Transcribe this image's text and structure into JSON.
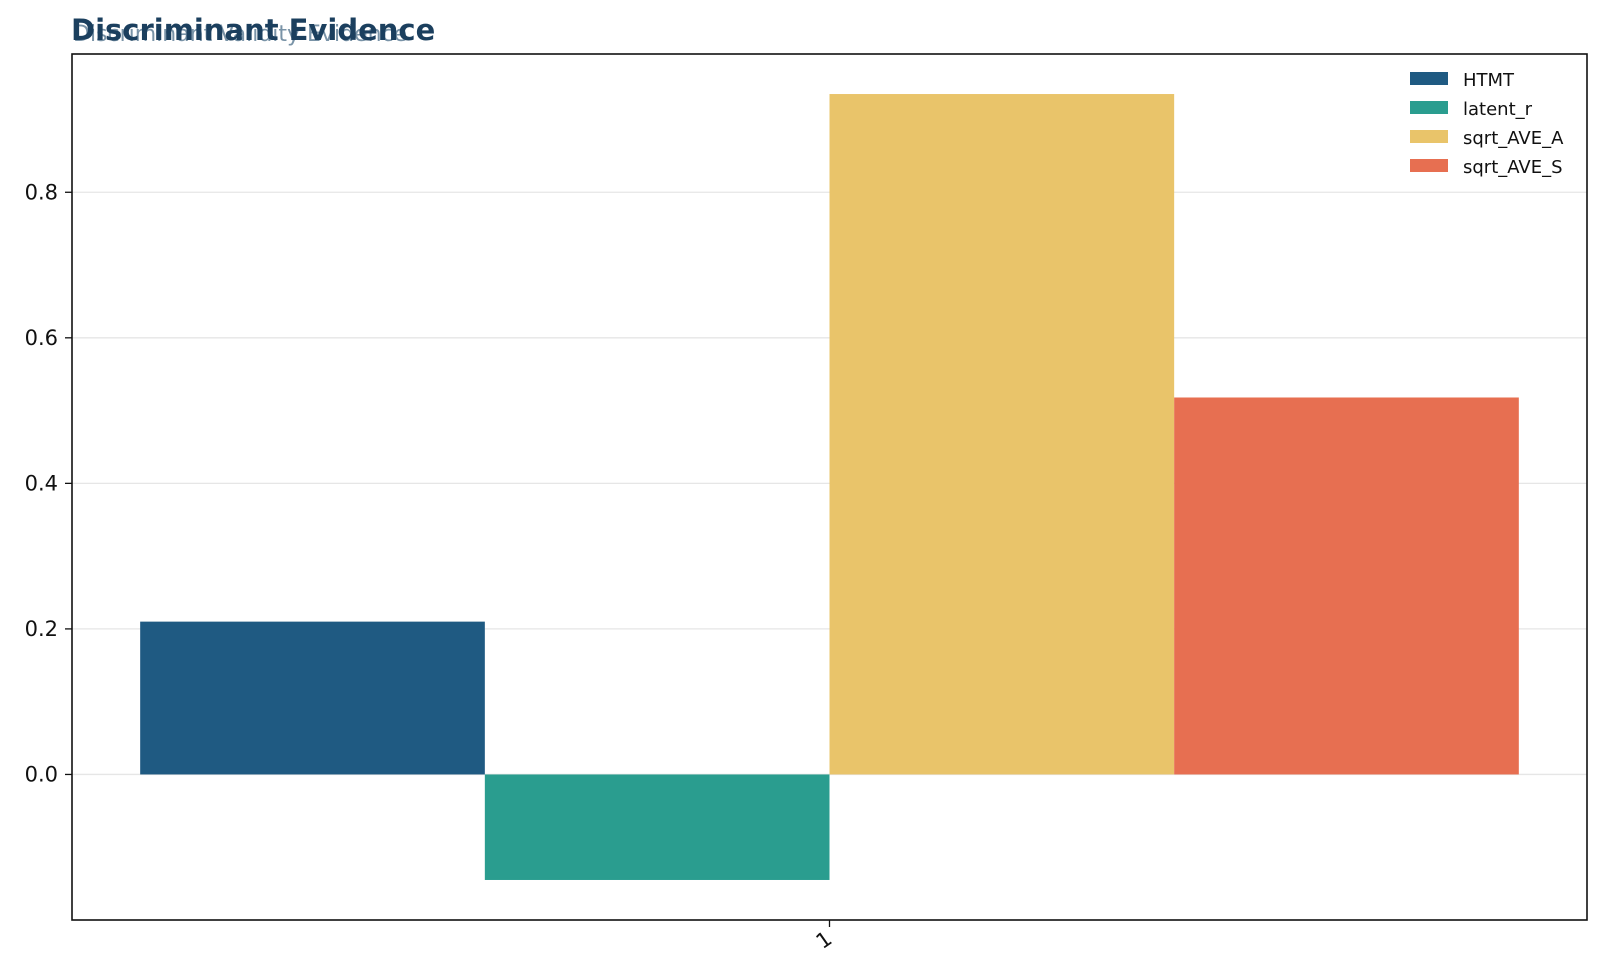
{
  "chart_data": {
    "type": "bar",
    "title": "Discriminant Evidence",
    "subtitle": "Discriminant Validity Evidence",
    "xlabel": "",
    "ylabel": "",
    "categories": [
      "1"
    ],
    "series": [
      {
        "name": "HTMT",
        "values": [
          0.21
        ],
        "color": "#1f5a82"
      },
      {
        "name": "latent_r",
        "values": [
          -0.145
        ],
        "color": "#2a9d8f"
      },
      {
        "name": "sqrt_AVE_A",
        "values": [
          0.935
        ],
        "color": "#e9c46a"
      },
      {
        "name": "sqrt_AVE_S",
        "values": [
          0.518
        ],
        "color": "#e76f51"
      }
    ],
    "ylim": [
      -0.2,
      0.99
    ],
    "yticks": [
      "0.0",
      "0.2",
      "0.4",
      "0.6",
      "0.8"
    ],
    "grid": "horizontal",
    "legend_position": "top-right"
  }
}
